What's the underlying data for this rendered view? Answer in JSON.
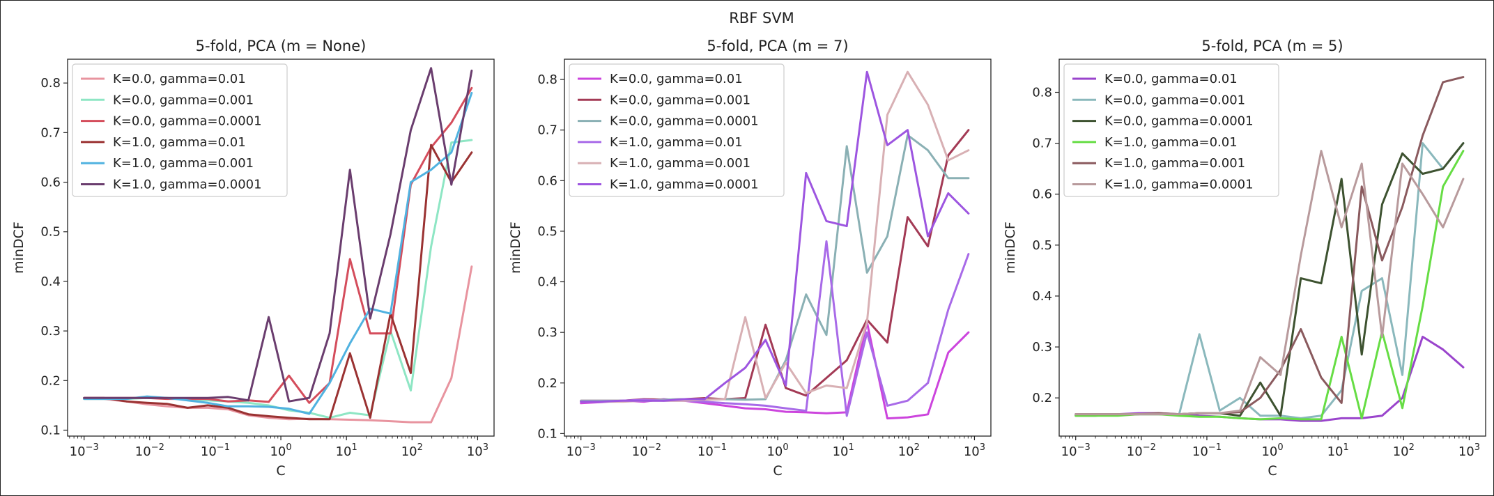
{
  "suptitle": "RBF SVM",
  "chart_data": [
    {
      "type": "line",
      "title": "5-fold, PCA (m = None)",
      "xlabel": "C",
      "ylabel": "minDCF",
      "xscale": "log",
      "xlim": [
        0.00056,
        1780
      ],
      "ylim": [
        0.088,
        0.848
      ],
      "yticks": [
        0.1,
        0.2,
        0.3,
        0.4,
        0.5,
        0.6,
        0.7,
        0.8
      ],
      "xticks": [
        "10^-3",
        "10^-2",
        "10^-1",
        "10^0",
        "10^1",
        "10^2",
        "10^3"
      ],
      "xtick_exponents": [
        -3,
        -2,
        -1,
        0,
        1,
        2,
        3
      ],
      "legend_position": "upper-left",
      "x": [
        0.001,
        0.002,
        0.0044,
        0.0091,
        0.0183,
        0.0378,
        0.0769,
        0.157,
        0.32,
        0.653,
        1.33,
        2.71,
        5.53,
        11.3,
        23,
        46.9,
        95.6,
        195,
        398,
        812
      ],
      "series": [
        {
          "name": "K=0.0, gamma=0.01",
          "color": "#e8949f",
          "values": [
            0.163,
            0.163,
            0.158,
            0.152,
            0.148,
            0.145,
            0.145,
            0.142,
            0.13,
            0.125,
            0.122,
            0.123,
            0.122,
            0.121,
            0.12,
            0.118,
            0.116,
            0.116,
            0.205,
            0.43
          ]
        },
        {
          "name": "K=0.0, gamma=0.001",
          "color": "#8ee6c4",
          "values": [
            0.163,
            0.163,
            0.163,
            0.165,
            0.165,
            0.163,
            0.16,
            0.158,
            0.155,
            0.15,
            0.14,
            0.135,
            0.125,
            0.135,
            0.13,
            0.3,
            0.18,
            0.47,
            0.68,
            0.685
          ]
        },
        {
          "name": "K=0.0, gamma=0.0001",
          "color": "#d44d5c",
          "values": [
            0.165,
            0.165,
            0.165,
            0.165,
            0.163,
            0.163,
            0.163,
            0.158,
            0.16,
            0.157,
            0.21,
            0.155,
            0.195,
            0.445,
            0.295,
            0.295,
            0.595,
            0.67,
            0.72,
            0.79
          ]
        },
        {
          "name": "K=1.0, gamma=0.01",
          "color": "#9a3232",
          "values": [
            0.165,
            0.165,
            0.158,
            0.155,
            0.153,
            0.145,
            0.15,
            0.145,
            0.132,
            0.128,
            0.125,
            0.122,
            0.122,
            0.255,
            0.125,
            0.335,
            0.215,
            0.675,
            0.6,
            0.66
          ]
        },
        {
          "name": "K=1.0, gamma=0.001",
          "color": "#50b2e0",
          "values": [
            0.163,
            0.163,
            0.163,
            0.168,
            0.165,
            0.16,
            0.155,
            0.148,
            0.148,
            0.147,
            0.143,
            0.133,
            0.195,
            0.275,
            0.345,
            0.335,
            0.6,
            0.625,
            0.66,
            0.78
          ]
        },
        {
          "name": "K=1.0, gamma=0.0001",
          "color": "#6a3d6e",
          "values": [
            0.165,
            0.165,
            0.165,
            0.165,
            0.165,
            0.165,
            0.165,
            0.167,
            0.16,
            0.328,
            0.158,
            0.165,
            0.295,
            0.625,
            0.325,
            0.495,
            0.705,
            0.83,
            0.595,
            0.825
          ]
        }
      ]
    },
    {
      "type": "line",
      "title": "5-fold, PCA (m = 7)",
      "xlabel": "C",
      "ylabel": "minDCF",
      "xscale": "log",
      "xlim": [
        0.00056,
        1780
      ],
      "ylim": [
        0.095,
        0.84
      ],
      "yticks": [
        0.1,
        0.2,
        0.3,
        0.4,
        0.5,
        0.6,
        0.7,
        0.8
      ],
      "xticks": [
        "10^-3",
        "10^-2",
        "10^-1",
        "10^0",
        "10^1",
        "10^2",
        "10^3"
      ],
      "xtick_exponents": [
        -3,
        -2,
        -1,
        0,
        1,
        2,
        3
      ],
      "legend_position": "upper-left",
      "x": [
        0.001,
        0.002,
        0.0044,
        0.0091,
        0.0183,
        0.0378,
        0.0769,
        0.157,
        0.32,
        0.653,
        1.33,
        2.71,
        5.53,
        11.3,
        23,
        46.9,
        95.6,
        195,
        398,
        812
      ],
      "series": [
        {
          "name": "K=0.0, gamma=0.01",
          "color": "#cc44dd",
          "values": [
            0.16,
            0.162,
            0.165,
            0.163,
            0.168,
            0.165,
            0.16,
            0.155,
            0.15,
            0.148,
            0.143,
            0.142,
            0.14,
            0.142,
            0.32,
            0.13,
            0.132,
            0.138,
            0.26,
            0.3
          ]
        },
        {
          "name": "K=0.0, gamma=0.001",
          "color": "#a33a55",
          "values": [
            0.165,
            0.165,
            0.165,
            0.168,
            0.167,
            0.168,
            0.17,
            0.168,
            0.17,
            0.315,
            0.19,
            0.175,
            0.21,
            0.245,
            0.325,
            0.28,
            0.528,
            0.47,
            0.65,
            0.7
          ]
        },
        {
          "name": "K=0.0, gamma=0.0001",
          "color": "#8ab0b4",
          "values": [
            0.165,
            0.165,
            0.165,
            0.165,
            0.167,
            0.168,
            0.167,
            0.168,
            0.167,
            0.168,
            0.245,
            0.375,
            0.295,
            0.668,
            0.418,
            0.49,
            0.69,
            0.66,
            0.605,
            0.605
          ]
        },
        {
          "name": "K=1.0, gamma=0.01",
          "color": "#a86ae8",
          "values": [
            0.163,
            0.163,
            0.165,
            0.167,
            0.165,
            0.165,
            0.163,
            0.16,
            0.158,
            0.155,
            0.15,
            0.145,
            0.48,
            0.135,
            0.3,
            0.155,
            0.165,
            0.2,
            0.345,
            0.455
          ]
        },
        {
          "name": "K=1.0, gamma=0.001",
          "color": "#d8b0b4",
          "values": [
            0.163,
            0.163,
            0.163,
            0.165,
            0.165,
            0.165,
            0.167,
            0.168,
            0.33,
            0.17,
            0.24,
            0.18,
            0.195,
            0.19,
            0.32,
            0.73,
            0.815,
            0.75,
            0.64,
            0.66
          ]
        },
        {
          "name": "K=1.0, gamma=0.0001",
          "color": "#9d55e0",
          "values": [
            0.163,
            0.163,
            0.165,
            0.165,
            0.165,
            0.168,
            0.168,
            0.2,
            0.23,
            0.285,
            0.195,
            0.615,
            0.52,
            0.51,
            0.815,
            0.67,
            0.7,
            0.49,
            0.575,
            0.535
          ]
        }
      ]
    },
    {
      "type": "line",
      "title": "5-fold, PCA (m = 5)",
      "xlabel": "C",
      "ylabel": "minDCF",
      "xscale": "log",
      "xlim": [
        0.00056,
        1780
      ],
      "ylim": [
        0.125,
        0.865
      ],
      "yticks": [
        0.2,
        0.3,
        0.4,
        0.5,
        0.6,
        0.7,
        0.8
      ],
      "xticks": [
        "10^-3",
        "10^-2",
        "10^-1",
        "10^0",
        "10^1",
        "10^2",
        "10^3"
      ],
      "xtick_exponents": [
        -3,
        -2,
        -1,
        0,
        1,
        2,
        3
      ],
      "legend_position": "upper-left",
      "x": [
        0.001,
        0.002,
        0.0044,
        0.0091,
        0.0183,
        0.0378,
        0.0769,
        0.157,
        0.32,
        0.653,
        1.33,
        2.71,
        5.53,
        11.3,
        23,
        46.9,
        95.6,
        195,
        398,
        812
      ],
      "series": [
        {
          "name": "K=0.0, gamma=0.01",
          "color": "#9a44cc",
          "values": [
            0.168,
            0.168,
            0.168,
            0.17,
            0.17,
            0.168,
            0.165,
            0.163,
            0.16,
            0.158,
            0.158,
            0.155,
            0.155,
            0.16,
            0.16,
            0.165,
            0.2,
            0.32,
            0.295,
            0.26
          ]
        },
        {
          "name": "K=0.0, gamma=0.001",
          "color": "#8ab8bc",
          "values": [
            0.168,
            0.168,
            0.168,
            0.168,
            0.168,
            0.168,
            0.325,
            0.175,
            0.2,
            0.165,
            0.165,
            0.16,
            0.165,
            0.215,
            0.41,
            0.435,
            0.245,
            0.7,
            0.65,
            0.7
          ]
        },
        {
          "name": "K=0.0, gamma=0.0001",
          "color": "#3d5230",
          "values": [
            0.165,
            0.165,
            0.168,
            0.168,
            0.168,
            0.168,
            0.17,
            0.17,
            0.165,
            0.23,
            0.165,
            0.435,
            0.425,
            0.63,
            0.285,
            0.58,
            0.68,
            0.64,
            0.65,
            0.7
          ]
        },
        {
          "name": "K=1.0, gamma=0.01",
          "color": "#66dd44",
          "values": [
            0.165,
            0.165,
            0.165,
            0.168,
            0.168,
            0.165,
            0.163,
            0.163,
            0.16,
            0.158,
            0.16,
            0.158,
            0.158,
            0.32,
            0.16,
            0.33,
            0.18,
            0.38,
            0.615,
            0.685
          ]
        },
        {
          "name": "K=1.0, gamma=0.001",
          "color": "#8a5a5e",
          "values": [
            0.168,
            0.168,
            0.168,
            0.168,
            0.17,
            0.168,
            0.17,
            0.17,
            0.172,
            0.2,
            0.255,
            0.335,
            0.24,
            0.19,
            0.615,
            0.47,
            0.575,
            0.715,
            0.82,
            0.83
          ]
        },
        {
          "name": "K=1.0, gamma=0.0001",
          "color": "#b89a9c",
          "values": [
            0.168,
            0.168,
            0.168,
            0.168,
            0.168,
            0.168,
            0.17,
            0.17,
            0.175,
            0.28,
            0.245,
            0.48,
            0.685,
            0.535,
            0.66,
            0.32,
            0.66,
            0.6,
            0.535,
            0.63
          ]
        }
      ]
    }
  ]
}
